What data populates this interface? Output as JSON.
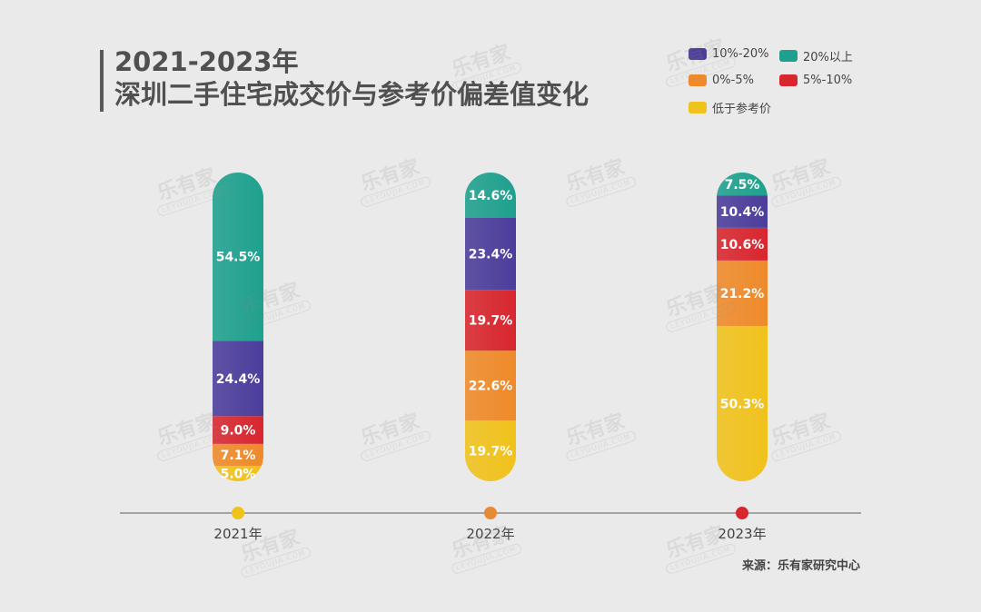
{
  "title": {
    "line1": "2021-2023年",
    "line2": "深圳二手住宅成交价与参考价偏差值变化"
  },
  "source": "来源：乐有家研究中心",
  "watermark": {
    "logo": "乐有家",
    "sub": "LEYOUJIA.COM"
  },
  "legend": [
    {
      "key": "10to20",
      "label": "10%-20%",
      "color": "#4b3d9b"
    },
    {
      "key": "above20",
      "label": "20%以上",
      "color": "#1fa08e"
    },
    {
      "key": "0to5",
      "label": "0%-5%",
      "color": "#ee8a2a"
    },
    {
      "key": "5to10",
      "label": "5%-10%",
      "color": "#d8262e"
    },
    {
      "key": "below",
      "label": "低于参考价",
      "color": "#f0c21c"
    }
  ],
  "chart_data": {
    "type": "bar",
    "stacked": true,
    "normalized_percent": true,
    "categories": [
      "2021年",
      "2022年",
      "2023年"
    ],
    "axis_dot_colors": [
      "#f0c21c",
      "#e68a33",
      "#d8262e"
    ],
    "stack_order_bottom_to_top": [
      "低于参考价",
      "0%-5%",
      "5%-10%",
      "10%-20%",
      "20%以上"
    ],
    "series": [
      {
        "name": "低于参考价",
        "color": "#f0c21c",
        "values": [
          5.0,
          19.7,
          50.3
        ],
        "labels": [
          "5.0%",
          "19.7%",
          "50.3%"
        ]
      },
      {
        "name": "0%-5%",
        "color": "#ee8a2a",
        "values": [
          7.1,
          22.6,
          21.2
        ],
        "labels": [
          "7.1%",
          "22.6%",
          "21.2%"
        ]
      },
      {
        "name": "5%-10%",
        "color": "#d8262e",
        "values": [
          9.0,
          19.7,
          10.6
        ],
        "labels": [
          "9.0%",
          "19.7%",
          "10.6%"
        ]
      },
      {
        "name": "10%-20%",
        "color": "#4b3d9b",
        "values": [
          24.4,
          23.4,
          10.4
        ],
        "labels": [
          "24.4%",
          "23.4%",
          "10.4%"
        ]
      },
      {
        "name": "20%以上",
        "color": "#1fa08e",
        "values": [
          54.5,
          14.6,
          7.5
        ],
        "labels": [
          "54.5%",
          "14.6%",
          "7.5%"
        ]
      }
    ]
  }
}
